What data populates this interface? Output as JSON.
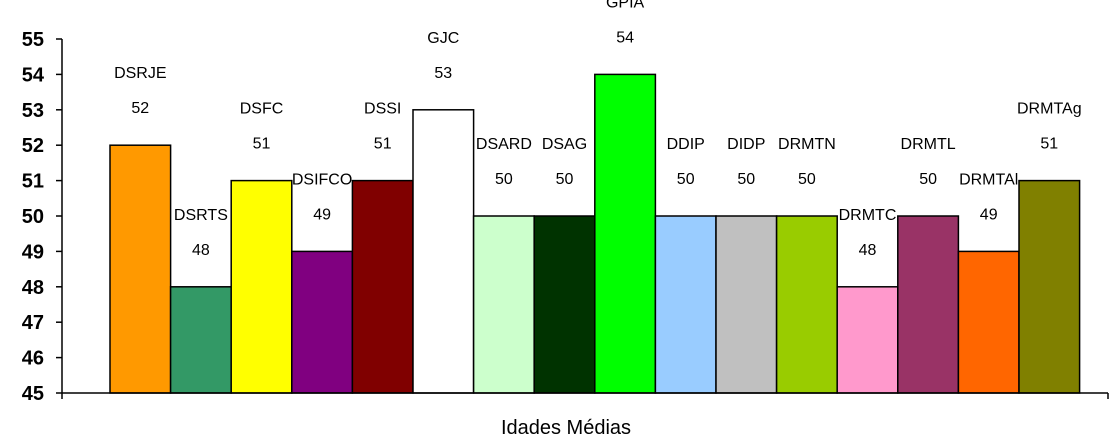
{
  "chart_data": {
    "type": "bar",
    "title": "",
    "xlabel": "Idades Médias",
    "ylabel": "",
    "ylim": [
      45,
      55
    ],
    "yticks": [
      45,
      46,
      47,
      48,
      49,
      50,
      51,
      52,
      53,
      54,
      55
    ],
    "grid": false,
    "legend": "none",
    "categories": [
      "DSRJE",
      "DSRTS",
      "DSFC",
      "DSIFCO",
      "DSSI",
      "GJC",
      "DSARD",
      "DSAG",
      "GPIA",
      "DDIP",
      "DIDP",
      "DRMTN",
      "DRMTC",
      "DRMTL",
      "DRMTAl",
      "DRMTAg"
    ],
    "values": [
      52,
      48,
      51,
      49,
      51,
      53,
      50,
      50,
      54,
      50,
      50,
      50,
      48,
      50,
      49,
      51
    ],
    "colors": [
      "#ff9900",
      "#339966",
      "#ffff00",
      "#800080",
      "#800000",
      "#ffffff",
      "#ccffcc",
      "#003300",
      "#00ff00",
      "#99ccff",
      "#c0c0c0",
      "#99cc00",
      "#ff99cc",
      "#993366",
      "#ff6600",
      "#808000"
    ]
  }
}
